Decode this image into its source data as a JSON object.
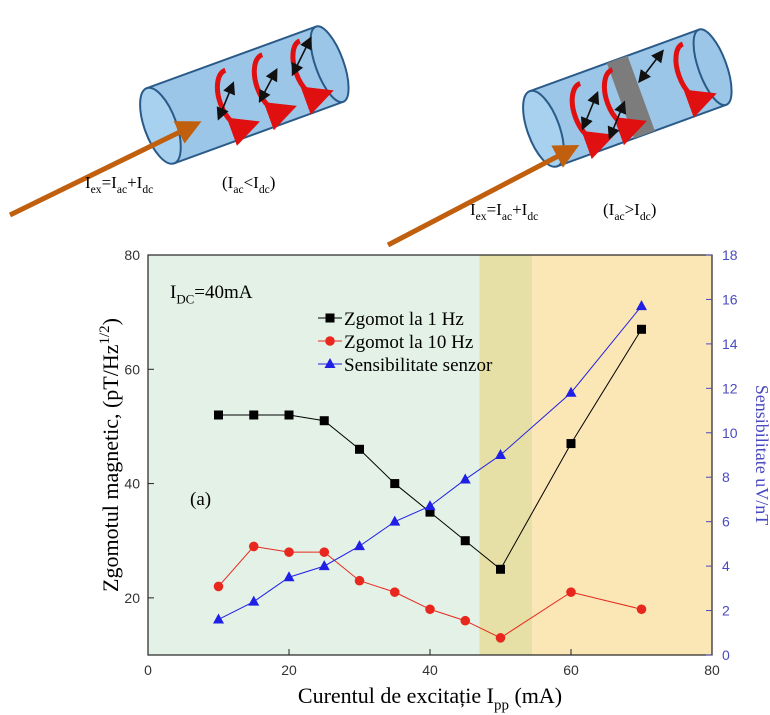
{
  "illustrations": [
    {
      "formula": [
        "I",
        "ex",
        "=I",
        "ac",
        "+I",
        "dc"
      ],
      "condition": [
        "(I",
        "ac",
        "<I",
        "dc",
        ")"
      ]
    },
    {
      "formula": [
        "I",
        "ex",
        "=I",
        "ac",
        "+I",
        "dc"
      ],
      "condition": [
        "(I",
        "ac",
        ">I",
        "dc",
        ")"
      ]
    }
  ],
  "chart_data": {
    "type": "line",
    "xlabel": [
      "Curentul de excitație I",
      "pp",
      " (mA)"
    ],
    "ylabel": [
      "Zgomotul magnetic, (pT/Hz",
      "1/2",
      ")"
    ],
    "y2label": "Sensibilitate uV/nT",
    "annotations": {
      "bias": [
        "I",
        "DC",
        "=40mA"
      ],
      "panel": "(a)"
    },
    "x": [
      10,
      15,
      20,
      25,
      30,
      35,
      40,
      45,
      50,
      60,
      70
    ],
    "series": [
      {
        "name": "Zgomot la 1 Hz",
        "color": "#000000",
        "marker": "square",
        "values": [
          52,
          52,
          52,
          51,
          46,
          40,
          35,
          30,
          25,
          47,
          67
        ]
      },
      {
        "name": "Zgomot la 10 Hz",
        "color": "#e8281e",
        "marker": "circle",
        "values": [
          22,
          29,
          28,
          28,
          23,
          21,
          18,
          16,
          13,
          21,
          18
        ]
      },
      {
        "name": "Sensibilitate senzor",
        "color": "#1f1fe6",
        "marker": "triangle",
        "axis": "y2",
        "values": [
          1.6,
          2.4,
          3.5,
          4.0,
          4.9,
          6.0,
          6.7,
          7.9,
          9.0,
          11.8,
          15.7
        ]
      }
    ],
    "xlim": [
      0,
      80
    ],
    "xticks": [
      0,
      20,
      40,
      60,
      80
    ],
    "ylim": [
      10,
      80
    ],
    "yticks": [
      20,
      40,
      60,
      80
    ],
    "y2lim": [
      0,
      18
    ],
    "y2ticks": [
      0,
      2,
      4,
      6,
      8,
      10,
      12,
      14,
      16,
      18
    ],
    "y2color": "#4a4ac0",
    "regions": [
      {
        "x0": 0,
        "x1": 47,
        "color": "#e3f1e6"
      },
      {
        "x0": 47,
        "x1": 54.5,
        "color": "#e6e0a6"
      },
      {
        "x0": 54.5,
        "x1": 80,
        "color": "#fbe6b6"
      }
    ],
    "legend": "upper center"
  }
}
